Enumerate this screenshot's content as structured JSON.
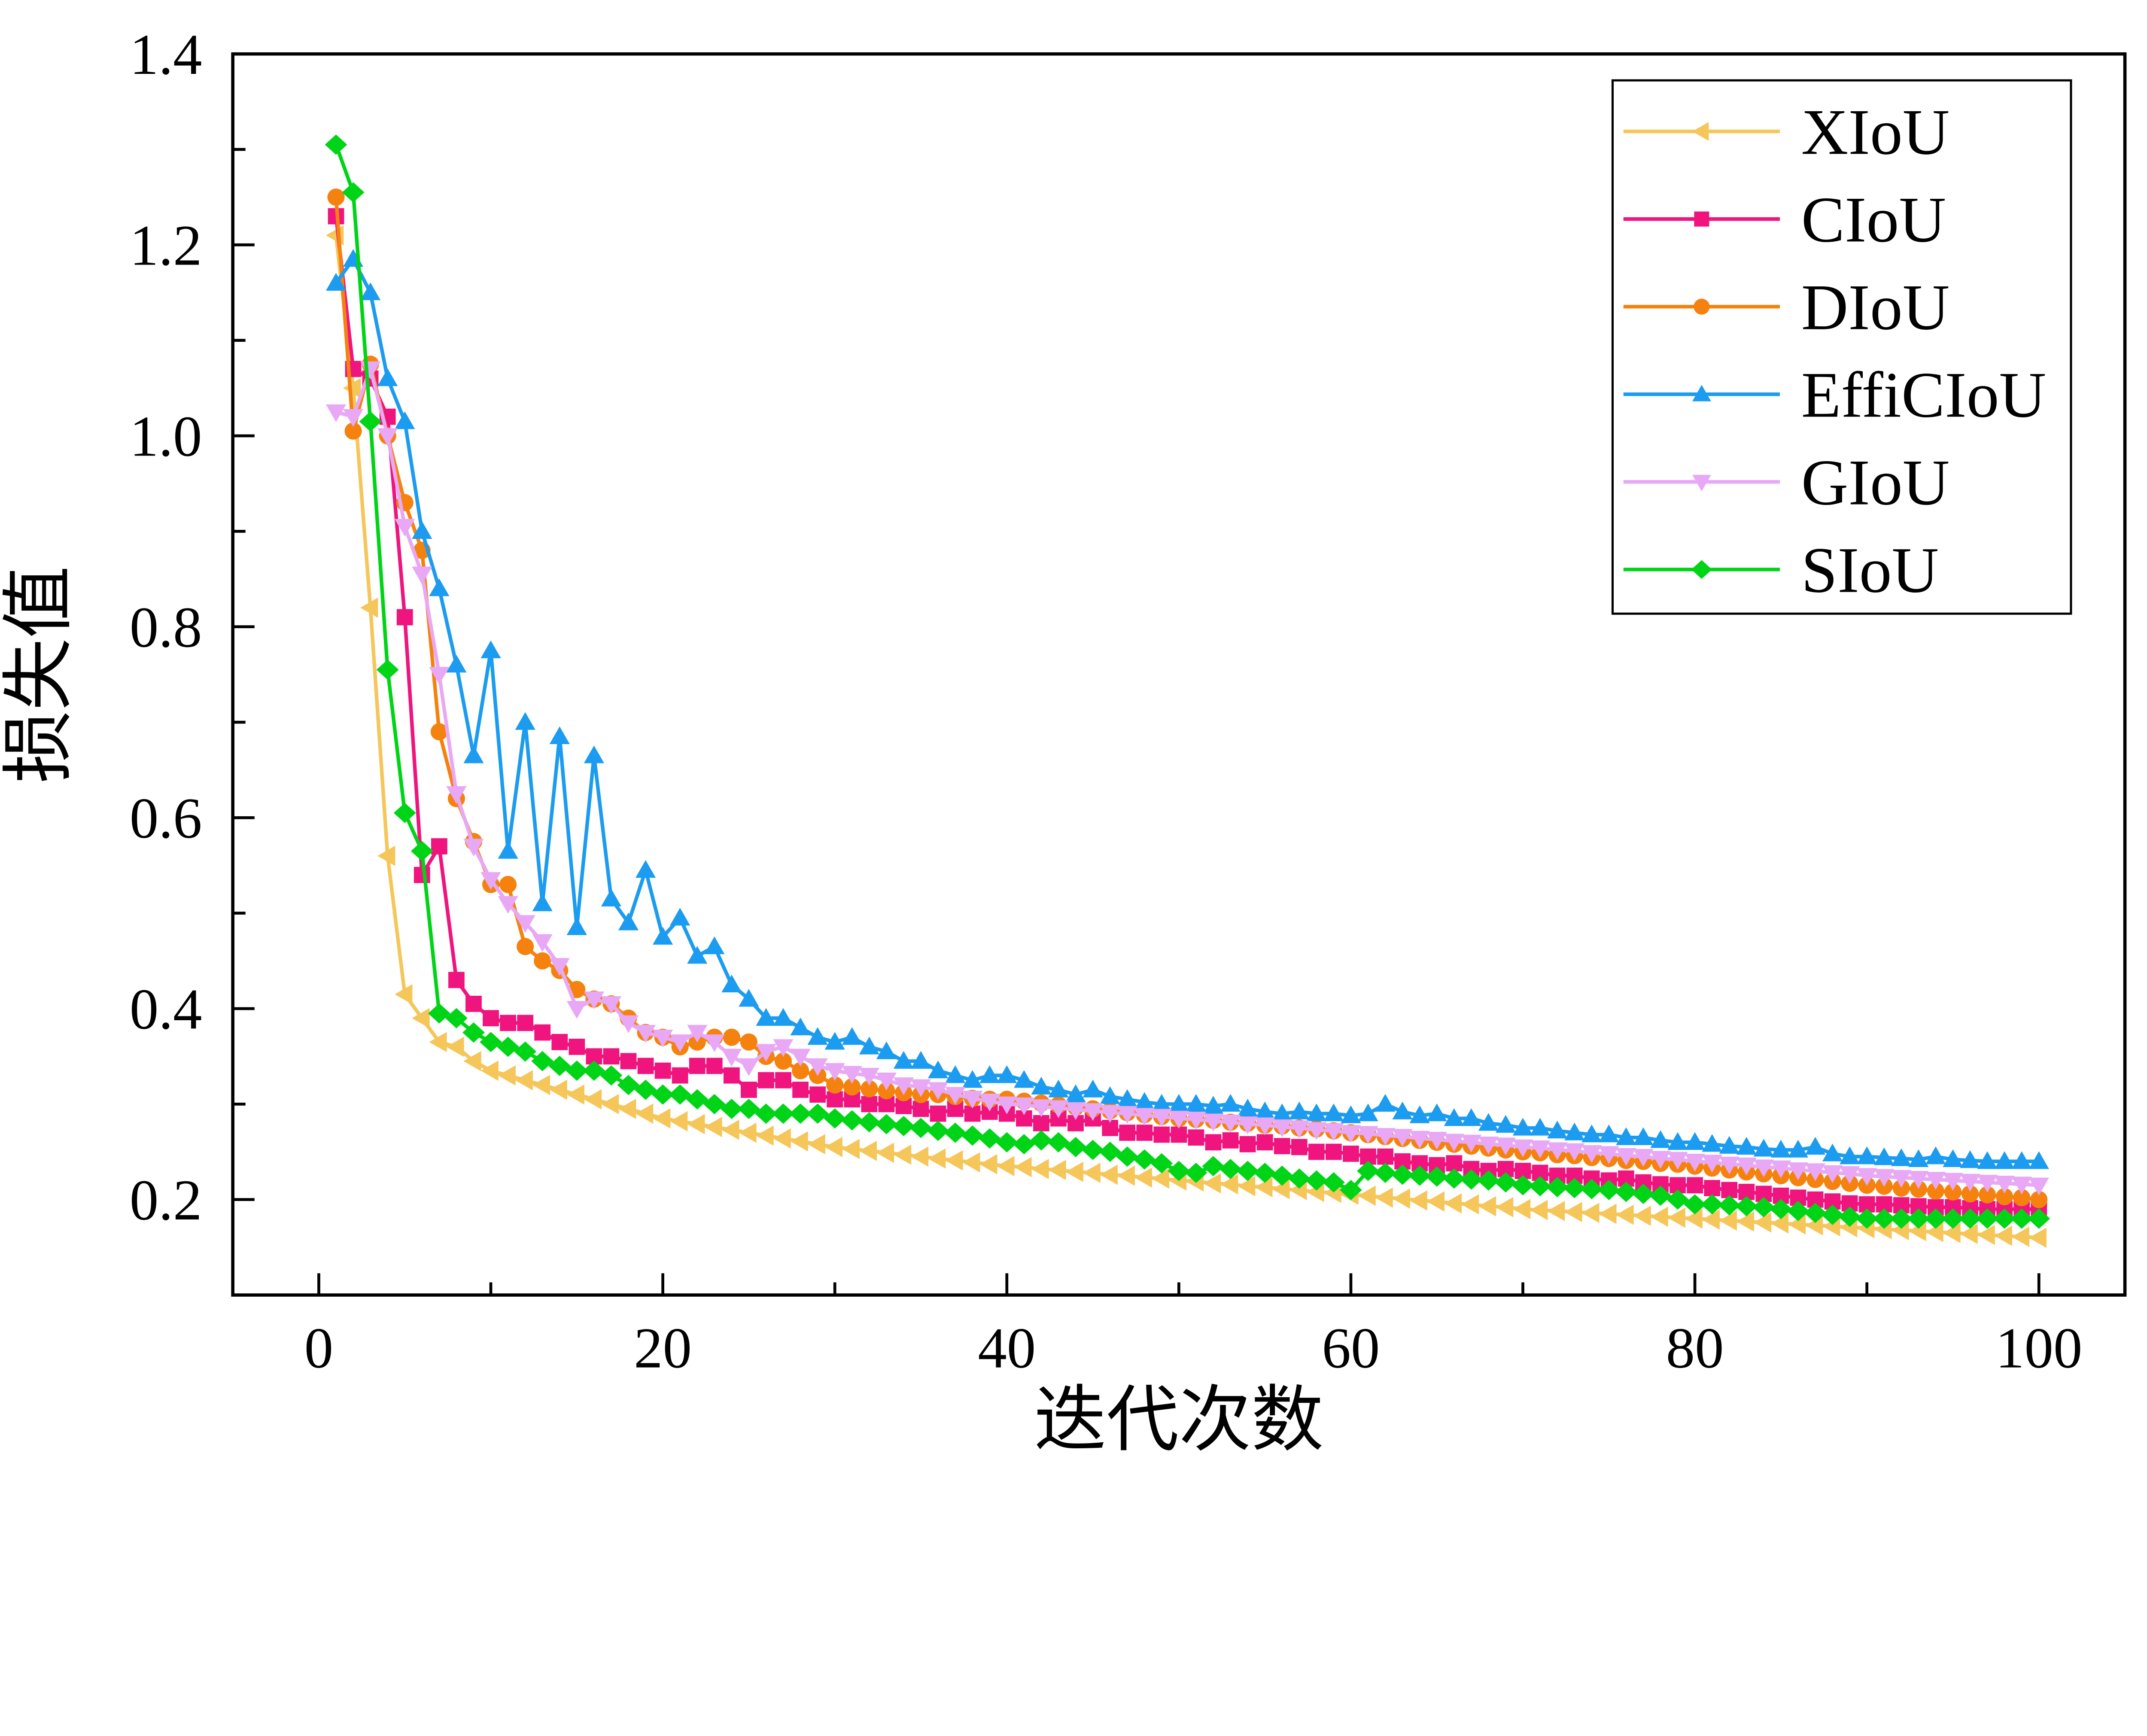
{
  "chart_data": {
    "type": "line",
    "title": "",
    "xlabel": "迭代次数",
    "ylabel": "损失值",
    "xlim": [
      -5,
      105
    ],
    "ylim": [
      0.1,
      1.4
    ],
    "xticks": [
      0,
      20,
      40,
      60,
      80,
      100
    ],
    "xtick_labels": [
      "0",
      "20",
      "40",
      "60",
      "80",
      "100"
    ],
    "yticks": [
      0.2,
      0.4,
      0.6,
      0.8,
      1.0,
      1.2,
      1.4
    ],
    "ytick_labels": [
      "0.2",
      "0.4",
      "0.6",
      "0.8",
      "1.0",
      "1.2",
      "1.4"
    ],
    "grid": false,
    "legend_position": "top-right",
    "x_start": 1,
    "series": [
      {
        "name": "XIoU",
        "color": "#f5c65a",
        "marker": "triangle-left",
        "values": [
          1.21,
          1.05,
          0.82,
          0.56,
          0.415,
          0.39,
          0.365,
          0.36,
          0.345,
          0.335,
          0.33,
          0.325,
          0.32,
          0.315,
          0.31,
          0.305,
          0.3,
          0.295,
          0.29,
          0.285,
          0.282,
          0.279,
          0.276,
          0.273,
          0.27,
          0.267,
          0.264,
          0.261,
          0.258,
          0.255,
          0.253,
          0.251,
          0.249,
          0.247,
          0.245,
          0.243,
          0.241,
          0.239,
          0.237,
          0.235,
          0.234,
          0.232,
          0.231,
          0.229,
          0.228,
          0.226,
          0.225,
          0.223,
          0.222,
          0.22,
          0.219,
          0.217,
          0.216,
          0.214,
          0.213,
          0.211,
          0.21,
          0.208,
          0.207,
          0.205,
          0.204,
          0.202,
          0.201,
          0.199,
          0.198,
          0.196,
          0.195,
          0.193,
          0.192,
          0.19,
          0.189,
          0.188,
          0.187,
          0.186,
          0.185,
          0.184,
          0.183,
          0.182,
          0.181,
          0.18,
          0.179,
          0.178,
          0.177,
          0.176,
          0.175,
          0.174,
          0.173,
          0.172,
          0.171,
          0.17,
          0.169,
          0.168,
          0.167,
          0.166,
          0.165,
          0.164,
          0.163,
          0.162,
          0.161,
          0.16
        ]
      },
      {
        "name": "CIoU",
        "color": "#f0147e",
        "marker": "square",
        "values": [
          1.23,
          1.07,
          1.06,
          1.02,
          0.81,
          0.54,
          0.57,
          0.43,
          0.405,
          0.39,
          0.385,
          0.385,
          0.375,
          0.365,
          0.36,
          0.35,
          0.35,
          0.345,
          0.34,
          0.335,
          0.33,
          0.34,
          0.34,
          0.33,
          0.315,
          0.325,
          0.325,
          0.315,
          0.31,
          0.305,
          0.305,
          0.3,
          0.3,
          0.298,
          0.295,
          0.29,
          0.295,
          0.29,
          0.292,
          0.29,
          0.285,
          0.28,
          0.285,
          0.28,
          0.285,
          0.275,
          0.27,
          0.27,
          0.268,
          0.268,
          0.265,
          0.26,
          0.262,
          0.258,
          0.26,
          0.256,
          0.255,
          0.25,
          0.25,
          0.248,
          0.245,
          0.245,
          0.24,
          0.238,
          0.236,
          0.238,
          0.232,
          0.23,
          0.232,
          0.23,
          0.228,
          0.225,
          0.225,
          0.222,
          0.22,
          0.222,
          0.218,
          0.216,
          0.215,
          0.215,
          0.212,
          0.21,
          0.208,
          0.206,
          0.204,
          0.202,
          0.2,
          0.198,
          0.196,
          0.195,
          0.195,
          0.194,
          0.193,
          0.192,
          0.192,
          0.191,
          0.19,
          0.19,
          0.19,
          0.19
        ]
      },
      {
        "name": "DIoU",
        "color": "#f5820f",
        "marker": "circle",
        "values": [
          1.25,
          1.005,
          1.075,
          1.0,
          0.93,
          0.88,
          0.69,
          0.62,
          0.575,
          0.53,
          0.53,
          0.465,
          0.45,
          0.44,
          0.42,
          0.41,
          0.405,
          0.39,
          0.375,
          0.37,
          0.36,
          0.365,
          0.37,
          0.37,
          0.365,
          0.35,
          0.345,
          0.335,
          0.33,
          0.32,
          0.318,
          0.316,
          0.314,
          0.312,
          0.31,
          0.31,
          0.308,
          0.306,
          0.305,
          0.305,
          0.303,
          0.301,
          0.299,
          0.297,
          0.295,
          0.293,
          0.291,
          0.289,
          0.287,
          0.285,
          0.284,
          0.283,
          0.281,
          0.28,
          0.278,
          0.277,
          0.275,
          0.274,
          0.272,
          0.27,
          0.268,
          0.266,
          0.264,
          0.262,
          0.26,
          0.258,
          0.256,
          0.254,
          0.252,
          0.25,
          0.249,
          0.247,
          0.246,
          0.244,
          0.243,
          0.241,
          0.24,
          0.238,
          0.237,
          0.235,
          0.233,
          0.231,
          0.229,
          0.227,
          0.225,
          0.223,
          0.221,
          0.219,
          0.217,
          0.215,
          0.214,
          0.212,
          0.211,
          0.209,
          0.208,
          0.206,
          0.205,
          0.203,
          0.202,
          0.2
        ]
      },
      {
        "name": "EffiCIoU",
        "color": "#1c9cf0",
        "marker": "triangle-up",
        "values": [
          1.16,
          1.185,
          1.15,
          1.06,
          1.015,
          0.9,
          0.84,
          0.76,
          0.665,
          0.775,
          0.565,
          0.7,
          0.51,
          0.685,
          0.485,
          0.665,
          0.515,
          0.49,
          0.545,
          0.475,
          0.495,
          0.455,
          0.465,
          0.425,
          0.41,
          0.39,
          0.39,
          0.38,
          0.37,
          0.365,
          0.37,
          0.36,
          0.355,
          0.345,
          0.345,
          0.335,
          0.33,
          0.325,
          0.33,
          0.33,
          0.325,
          0.318,
          0.315,
          0.31,
          0.315,
          0.308,
          0.305,
          0.302,
          0.3,
          0.3,
          0.3,
          0.298,
          0.3,
          0.295,
          0.292,
          0.29,
          0.292,
          0.29,
          0.29,
          0.288,
          0.29,
          0.3,
          0.292,
          0.288,
          0.29,
          0.285,
          0.285,
          0.28,
          0.278,
          0.275,
          0.275,
          0.272,
          0.27,
          0.268,
          0.268,
          0.265,
          0.265,
          0.262,
          0.26,
          0.26,
          0.258,
          0.256,
          0.255,
          0.253,
          0.252,
          0.252,
          0.255,
          0.248,
          0.245,
          0.245,
          0.244,
          0.243,
          0.242,
          0.245,
          0.242,
          0.241,
          0.24,
          0.24,
          0.24,
          0.24
        ]
      },
      {
        "name": "GIoU",
        "color": "#e8a8f5",
        "marker": "triangle-down",
        "values": [
          1.025,
          1.02,
          1.07,
          1.0,
          0.905,
          0.855,
          0.75,
          0.625,
          0.57,
          0.535,
          0.51,
          0.49,
          0.47,
          0.445,
          0.4,
          0.41,
          0.405,
          0.385,
          0.375,
          0.37,
          0.365,
          0.375,
          0.365,
          0.35,
          0.34,
          0.355,
          0.36,
          0.35,
          0.34,
          0.335,
          0.332,
          0.33,
          0.325,
          0.32,
          0.318,
          0.315,
          0.31,
          0.306,
          0.303,
          0.3,
          0.299,
          0.297,
          0.296,
          0.294,
          0.293,
          0.291,
          0.29,
          0.288,
          0.287,
          0.285,
          0.284,
          0.282,
          0.281,
          0.279,
          0.278,
          0.276,
          0.275,
          0.273,
          0.272,
          0.27,
          0.269,
          0.267,
          0.266,
          0.264,
          0.263,
          0.261,
          0.26,
          0.258,
          0.257,
          0.255,
          0.254,
          0.252,
          0.251,
          0.249,
          0.248,
          0.246,
          0.245,
          0.243,
          0.242,
          0.24,
          0.239,
          0.237,
          0.236,
          0.234,
          0.233,
          0.231,
          0.23,
          0.228,
          0.227,
          0.225,
          0.224,
          0.223,
          0.222,
          0.221,
          0.22,
          0.219,
          0.218,
          0.217,
          0.216,
          0.215
        ]
      },
      {
        "name": "SIoU",
        "color": "#00d416",
        "marker": "diamond",
        "values": [
          1.305,
          1.255,
          1.015,
          0.755,
          0.605,
          0.565,
          0.395,
          0.39,
          0.375,
          0.365,
          0.36,
          0.355,
          0.345,
          0.34,
          0.335,
          0.335,
          0.33,
          0.32,
          0.315,
          0.31,
          0.31,
          0.305,
          0.3,
          0.295,
          0.295,
          0.29,
          0.29,
          0.29,
          0.29,
          0.285,
          0.283,
          0.281,
          0.279,
          0.277,
          0.275,
          0.272,
          0.27,
          0.267,
          0.264,
          0.26,
          0.258,
          0.262,
          0.26,
          0.255,
          0.252,
          0.25,
          0.245,
          0.242,
          0.238,
          0.23,
          0.228,
          0.235,
          0.232,
          0.23,
          0.228,
          0.225,
          0.222,
          0.22,
          0.218,
          0.21,
          0.23,
          0.228,
          0.226,
          0.225,
          0.224,
          0.222,
          0.221,
          0.22,
          0.218,
          0.215,
          0.214,
          0.213,
          0.212,
          0.211,
          0.21,
          0.208,
          0.206,
          0.204,
          0.2,
          0.195,
          0.195,
          0.194,
          0.193,
          0.192,
          0.19,
          0.188,
          0.186,
          0.184,
          0.182,
          0.18,
          0.18,
          0.18,
          0.18,
          0.18,
          0.18,
          0.18,
          0.18,
          0.18,
          0.18,
          0.18
        ]
      }
    ]
  }
}
